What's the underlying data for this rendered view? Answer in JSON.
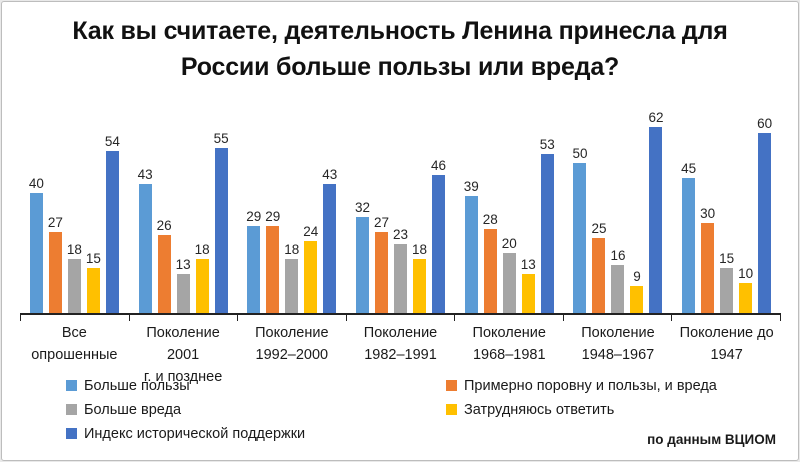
{
  "title": "Как вы считаете, деятельность Ленина принесла для России больше пользы или вреда?",
  "source": "по данным ВЦИОМ",
  "chart_data": {
    "type": "bar",
    "title": "Как вы считаете, деятельность Ленина принесла для России больше пользы или вреда?",
    "xlabel": "",
    "ylabel": "",
    "ylim": [
      0,
      65
    ],
    "grid": false,
    "value_labels": true,
    "legend_position": "bottom",
    "categories": [
      [
        "Все",
        "опрошенные"
      ],
      [
        "Поколение 2001",
        "г. и позднее"
      ],
      [
        "Поколение",
        "1992–2000"
      ],
      [
        "Поколение",
        "1982–1991"
      ],
      [
        "Поколение",
        "1968–1981"
      ],
      [
        "Поколение",
        "1948–1967"
      ],
      [
        "Поколение до",
        "1947"
      ]
    ],
    "series": [
      {
        "name": "Больше пользы",
        "color": "#5B9BD5",
        "values": [
          40,
          43,
          29,
          32,
          39,
          50,
          45
        ]
      },
      {
        "name": "Примерно поровну и пользы, и вреда",
        "color": "#ED7D31",
        "values": [
          27,
          26,
          29,
          27,
          28,
          25,
          30
        ]
      },
      {
        "name": "Больше вреда",
        "color": "#A5A5A5",
        "values": [
          18,
          13,
          18,
          23,
          20,
          16,
          15
        ]
      },
      {
        "name": "Затрудняюсь ответить",
        "color": "#FFC000",
        "values": [
          15,
          18,
          24,
          18,
          13,
          9,
          10
        ]
      },
      {
        "name": "Индекс исторической поддержки",
        "color": "#4472C4",
        "values": [
          54,
          55,
          43,
          46,
          53,
          62,
          60
        ]
      }
    ],
    "legend_columns": [
      [
        0,
        2,
        4
      ],
      [
        1,
        3
      ]
    ]
  }
}
